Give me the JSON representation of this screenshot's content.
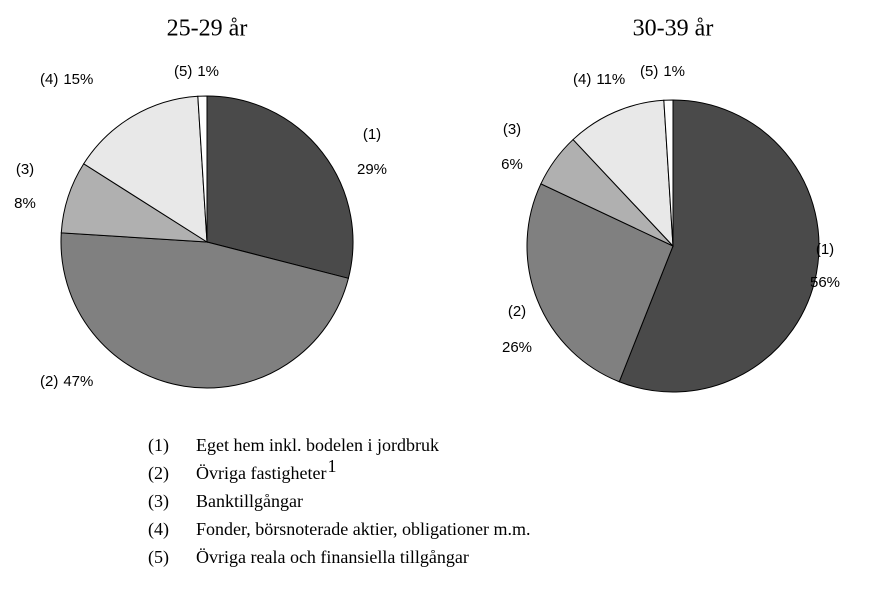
{
  "chart_data": [
    {
      "type": "pie",
      "title": "25-29 år",
      "categories": [
        "(1)",
        "(2)",
        "(3)",
        "(4)",
        "(5)"
      ],
      "values": [
        29,
        47,
        8,
        15,
        1
      ],
      "value_labels": [
        "29%",
        "47%",
        "8%",
        "15%",
        "1%"
      ],
      "colors": [
        "#4a4a4a",
        "#808080",
        "#b0b0b0",
        "#e8e8e8",
        "#ffffff"
      ]
    },
    {
      "type": "pie",
      "title": "30-39 år",
      "categories": [
        "(1)",
        "(2)",
        "(3)",
        "(4)",
        "(5)"
      ],
      "values": [
        56,
        26,
        6,
        11,
        1
      ],
      "value_labels": [
        "56%",
        "26%",
        "6%",
        "11%",
        "1%"
      ],
      "colors": [
        "#4a4a4a",
        "#808080",
        "#b0b0b0",
        "#e8e8e8",
        "#ffffff"
      ]
    }
  ],
  "legend": {
    "items": [
      {
        "key": "(1)",
        "label": "Eget hem inkl. bodelen i jordbruk"
      },
      {
        "key": "(2)",
        "label": "Övriga fastigheter",
        "note": "1"
      },
      {
        "key": "(3)",
        "label": "Banktillgångar"
      },
      {
        "key": "(4)",
        "label": "Fonder, börsnoterade aktier, obligationer m.m."
      },
      {
        "key": "(5)",
        "label": "Övriga reala och finansiella tillgångar"
      }
    ]
  }
}
